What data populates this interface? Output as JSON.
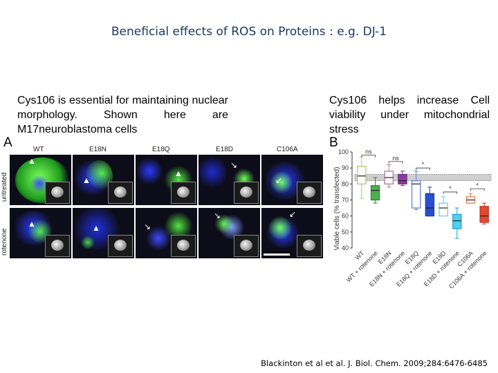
{
  "title": "Beneficial effects of ROS on Proteins : e.g. DJ-1",
  "left_caption": "Cys106 is essential for maintaining nuclear morphology. Shown here are M17neuroblastoma cells",
  "right_caption": "Cys106 helps increase Cell viability under mitochondrial stress",
  "panel_a": {
    "letter": "A",
    "columns": [
      "WT",
      "E18N",
      "E18Q",
      "E18D",
      "C106A"
    ],
    "rows": [
      "untreated",
      "rotenone"
    ]
  },
  "panel_b_letter": "B",
  "citation": "Blackinton et al et al. J. Biol. Chem. 2009;284:6476-6485",
  "chart_data": {
    "type": "box",
    "ylabel": "Viable cells (% transfected)",
    "ylim": [
      40,
      100
    ],
    "yticks": [
      40,
      50,
      60,
      70,
      80,
      90,
      100
    ],
    "reference_band": [
      82,
      86
    ],
    "categories": [
      "WT",
      "WT + rotenone",
      "E18N",
      "E18N + rotenone",
      "E18Q",
      "E18Q + rotenone",
      "E18D",
      "E18D + rotenone",
      "C106A",
      "C106A + rotenone"
    ],
    "boxes": [
      {
        "min": 71,
        "q1": 80,
        "median": 85,
        "q3": 91,
        "max": 97,
        "color": "#9acd5a",
        "fill": "none"
      },
      {
        "min": 68,
        "q1": 70,
        "median": 76,
        "q3": 79,
        "max": 84,
        "color": "#2e8b2e",
        "fill": "#4caf50"
      },
      {
        "min": 78,
        "q1": 80,
        "median": 84,
        "q3": 88,
        "max": 92,
        "color": "#b07090",
        "fill": "none"
      },
      {
        "min": 79,
        "q1": 80,
        "median": 82,
        "q3": 86,
        "max": 88,
        "color": "#6a2a7a",
        "fill": "#8e3aa0"
      },
      {
        "min": 64,
        "q1": 65,
        "median": 80,
        "q3": 82,
        "max": 88,
        "color": "#5b7bd0",
        "fill": "none"
      },
      {
        "min": 60,
        "q1": 60,
        "median": 65,
        "q3": 74,
        "max": 78,
        "color": "#1f3aa0",
        "fill": "#2a4ed0"
      },
      {
        "min": 60,
        "q1": 60,
        "median": 65,
        "q3": 68,
        "max": 72,
        "color": "#70c8e0",
        "fill": "none"
      },
      {
        "min": 46,
        "q1": 52,
        "median": 57,
        "q3": 61,
        "max": 65,
        "color": "#1fa0d0",
        "fill": "#4fd0f0"
      },
      {
        "min": 68,
        "q1": 68,
        "median": 70,
        "q3": 72,
        "max": 74,
        "color": "#e07040",
        "fill": "none"
      },
      {
        "min": 55,
        "q1": 56,
        "median": 60,
        "q3": 66,
        "max": 68,
        "color": "#c03020",
        "fill": "#e04a30"
      }
    ],
    "annotations": [
      {
        "text": "ns",
        "from": 0,
        "to": 1,
        "y": 98
      },
      {
        "text": "ns",
        "from": 2,
        "to": 3,
        "y": 94
      },
      {
        "text": "*",
        "from": 4,
        "to": 5,
        "y": 90
      },
      {
        "text": "*",
        "from": 6,
        "to": 7,
        "y": 75
      },
      {
        "text": "*",
        "from": 8,
        "to": 9,
        "y": 77
      }
    ]
  }
}
